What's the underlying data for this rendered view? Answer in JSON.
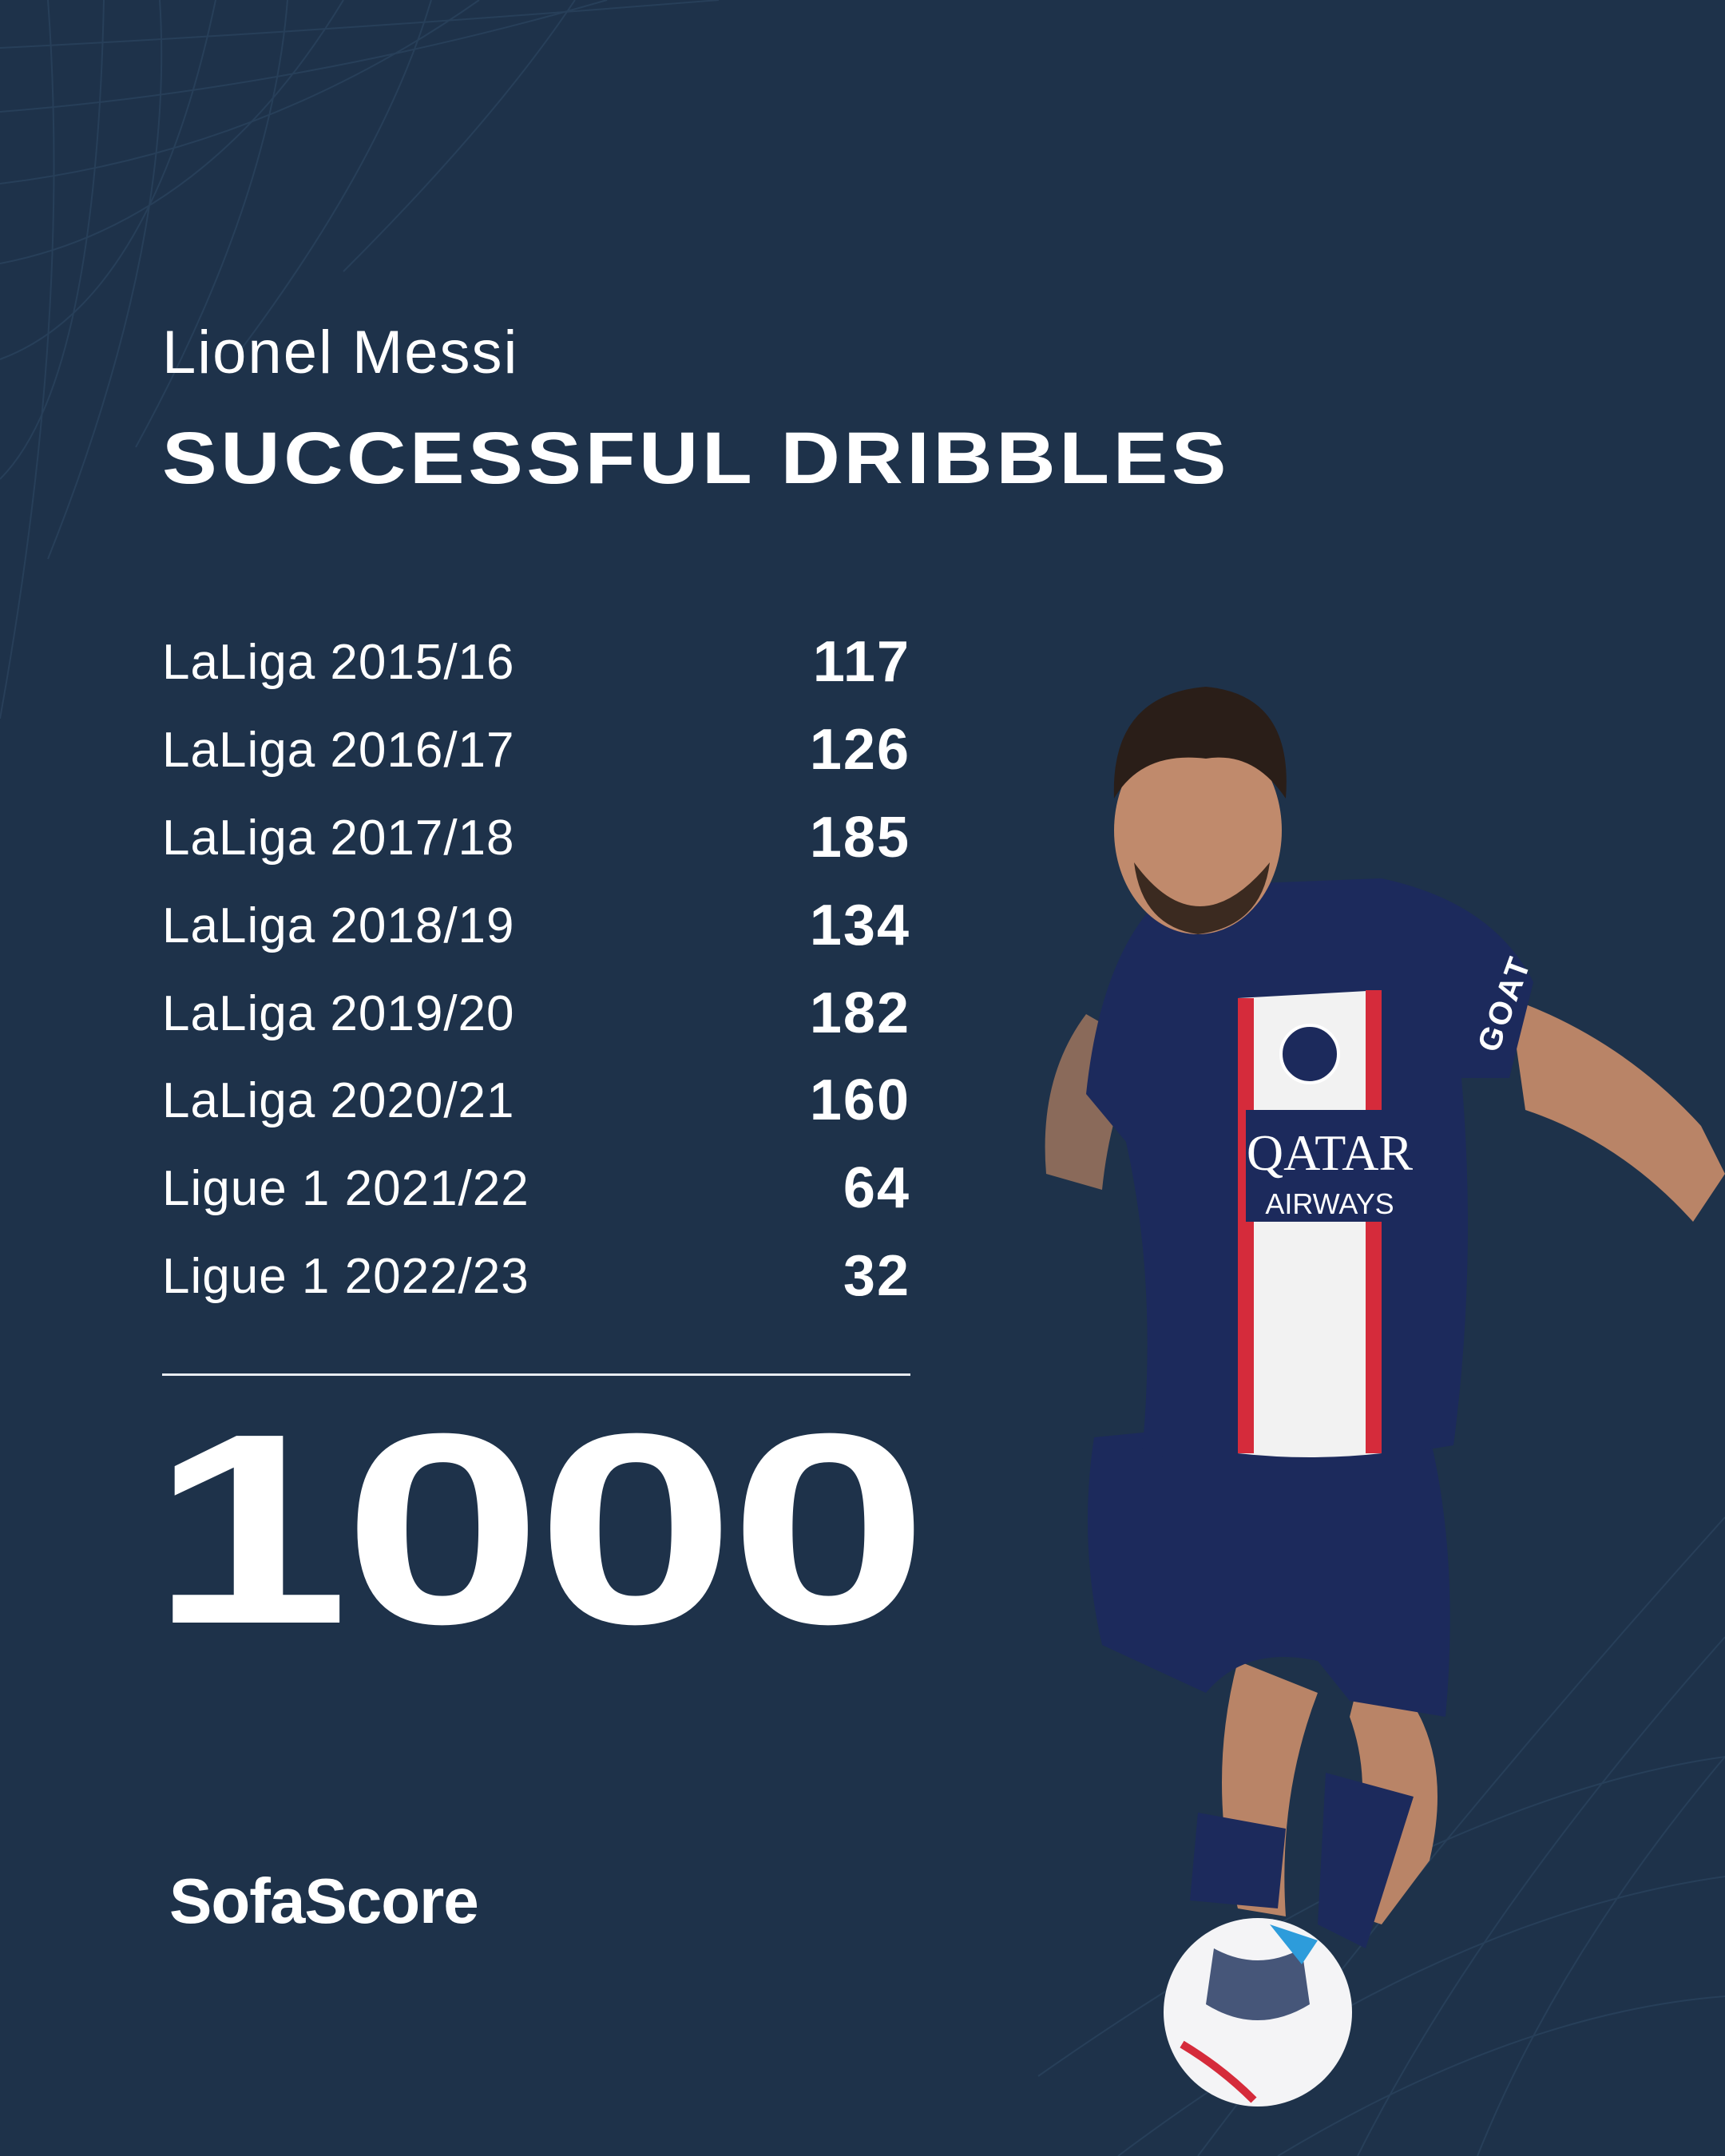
{
  "header": {
    "player_name": "Lionel Messi",
    "stat_title": "SUCCESSFUL DRIBBLES"
  },
  "seasons": [
    {
      "label": "LaLiga 2015/16",
      "value": "117"
    },
    {
      "label": "LaLiga 2016/17",
      "value": "126"
    },
    {
      "label": "LaLiga 2017/18",
      "value": "185"
    },
    {
      "label": "LaLiga 2018/19",
      "value": "134"
    },
    {
      "label": "LaLiga 2019/20",
      "value": "182"
    },
    {
      "label": "LaLiga 2020/21",
      "value": "160"
    },
    {
      "label": "Ligue 1 2021/22",
      "value": "64"
    },
    {
      "label": "Ligue 1 2022/23",
      "value": "32"
    }
  ],
  "total": "1000",
  "brand": "SofaScore",
  "player_image": {
    "jersey_text": "QATAR AIRWAYS",
    "sleeve_text": "GOAT"
  },
  "colors": {
    "background": "#1e324a",
    "text": "#ffffff",
    "jersey": "#1c2a5c",
    "stripe_red": "#d52b3b"
  }
}
